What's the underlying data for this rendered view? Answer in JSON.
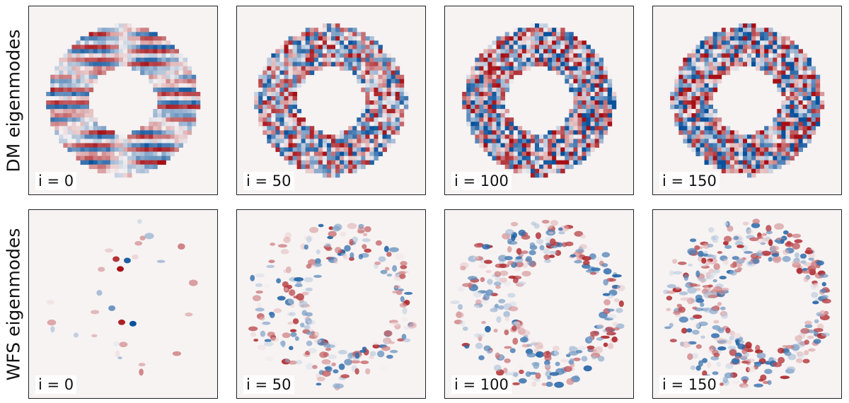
{
  "rows": [
    {
      "label": "DM eigenmodes",
      "panels": [
        {
          "label": "i = 0",
          "mode_index": 0
        },
        {
          "label": "i = 50",
          "mode_index": 50
        },
        {
          "label": "i = 100",
          "mode_index": 100
        },
        {
          "label": "i = 150",
          "mode_index": 150
        }
      ]
    },
    {
      "label": "WFS eigenmodes",
      "panels": [
        {
          "label": "i = 0",
          "mode_index": 0
        },
        {
          "label": "i = 50",
          "mode_index": 50
        },
        {
          "label": "i = 100",
          "mode_index": 100
        },
        {
          "label": "i = 150",
          "mode_index": 150
        }
      ]
    }
  ],
  "colormap": {
    "negative": "#08519c",
    "neutral": "#f7f3f3",
    "positive": "#a50f15"
  }
}
